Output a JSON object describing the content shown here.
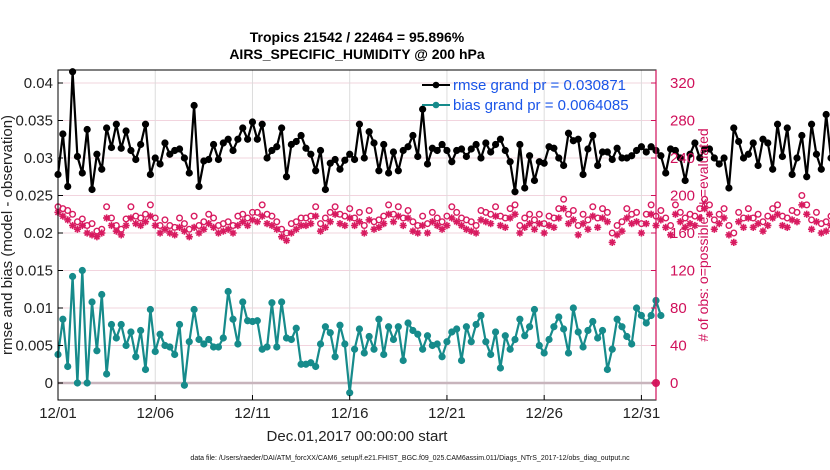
{
  "chart_data": {
    "type": "line",
    "title": "Tropics 21542 / 22464 = 95.896%",
    "subtitle": "AIRS_SPECIFIC_HUMIDITY @ 200 hPa",
    "xlabel": "Dec.01,2017 00:00:00 start",
    "ylabel": "rmse and bias (model - observation)",
    "y2label": "# of obs: o=possible; ∗=evaluated",
    "footnote": "data file: /Users/raeder/DAI/ATM_forcXX/CAM6_setup/f.e21.FHIST_BGC.f09_025.CAM6assim.011/Diags_NTrS_2017-12/obs_diag_output.nc",
    "x_start_day": 1,
    "x_step_days": 0.25,
    "xlim_days": [
      1,
      31.75
    ],
    "x_ticks": [
      {
        "day": 1,
        "label": "12/01"
      },
      {
        "day": 6,
        "label": "12/06"
      },
      {
        "day": 11,
        "label": "12/11"
      },
      {
        "day": 16,
        "label": "12/16"
      },
      {
        "day": 21,
        "label": "12/21"
      },
      {
        "day": 26,
        "label": "12/26"
      },
      {
        "day": 31,
        "label": "12/31"
      }
    ],
    "ylim": [
      -0.0025,
      0.042
    ],
    "y_ticks": [
      0,
      0.005,
      0.01,
      0.015,
      0.02,
      0.025,
      0.03,
      0.035,
      0.04
    ],
    "y_tick_labels": [
      "0",
      "0.005",
      "0.01",
      "0.015",
      "0.02",
      "0.025",
      "0.03",
      "0.035",
      "0.04"
    ],
    "y2lim": [
      -20,
      340
    ],
    "y2_ticks": [
      0,
      40,
      80,
      120,
      160,
      200,
      240,
      280,
      320
    ],
    "y2_tick_labels": [
      "0",
      "40",
      "80",
      "120",
      "160",
      "200",
      "240",
      "280",
      "320"
    ],
    "grid": true,
    "legend_position": "top-right",
    "series": [
      {
        "name": "rmse grand pr = 0.030871",
        "color": "#000000",
        "axis": "left",
        "values": [
          0.0278,
          0.0332,
          0.0262,
          0.0415,
          0.0302,
          0.028,
          0.0338,
          0.0258,
          0.0305,
          0.0285,
          0.034,
          0.0314,
          0.0345,
          0.0313,
          0.0336,
          0.031,
          0.0298,
          0.0318,
          0.0345,
          0.0278,
          0.03,
          0.0292,
          0.032,
          0.0305,
          0.031,
          0.0312,
          0.03,
          0.028,
          0.037,
          0.0262,
          0.0296,
          0.0298,
          0.0318,
          0.0298,
          0.032,
          0.0325,
          0.031,
          0.0325,
          0.034,
          0.0325,
          0.0348,
          0.0325,
          0.0345,
          0.03,
          0.031,
          0.0315,
          0.034,
          0.0275,
          0.0318,
          0.0322,
          0.033,
          0.0313,
          0.0305,
          0.0283,
          0.031,
          0.0258,
          0.0293,
          0.0298,
          0.0285,
          0.0297,
          0.0305,
          0.0298,
          0.0345,
          0.03,
          0.0335,
          0.032,
          0.0283,
          0.0318,
          0.028,
          0.0308,
          0.0283,
          0.031,
          0.0315,
          0.033,
          0.0302,
          0.0365,
          0.0292,
          0.0313,
          0.031,
          0.0318,
          0.031,
          0.0295,
          0.031,
          0.0312,
          0.0302,
          0.0312,
          0.0318,
          0.03,
          0.032,
          0.0308,
          0.0318,
          0.0325,
          0.031,
          0.0295,
          0.0255,
          0.0318,
          0.026,
          0.0303,
          0.027,
          0.0295,
          0.0293,
          0.0315,
          0.0313,
          0.03,
          0.029,
          0.0333,
          0.0323,
          0.0325,
          0.0278,
          0.0312,
          0.033,
          0.029,
          0.0308,
          0.0308,
          0.0298,
          0.0313,
          0.03,
          0.03,
          0.0303,
          0.031,
          0.0315,
          0.0308,
          0.0315,
          0.031,
          0.0303,
          0.028,
          0.0312,
          0.031,
          0.03,
          0.027,
          0.0305,
          0.032,
          0.03,
          0.0312,
          0.0312,
          0.03,
          0.0292,
          0.03,
          0.026,
          0.034,
          0.0322,
          0.03,
          0.0305,
          0.032,
          0.029,
          0.0325,
          0.032,
          0.0285,
          0.0345,
          0.0302,
          0.034,
          0.0278,
          0.03,
          0.033,
          0.0275,
          0.0345,
          0.0305,
          0.0285,
          0.0358,
          0.03,
          0.0348,
          0.0262,
          0.033,
          0.027,
          0.034,
          0.0315,
          0.029,
          0.034,
          0.0315,
          0.03,
          0.0335,
          0.0285,
          0.0345,
          0.025,
          0.034
        ]
      },
      {
        "name": "bias grand pr = 0.0064085",
        "color": "#168b8b",
        "axis": "left",
        "values": [
          0.0038,
          0.0085,
          0.0022,
          0.0142,
          0.0,
          0.015,
          0.0,
          0.0108,
          0.0043,
          0.0118,
          0.0012,
          0.0078,
          0.006,
          0.0078,
          0.005,
          0.0068,
          0.0035,
          0.007,
          0.0018,
          0.0098,
          0.0042,
          0.0065,
          0.005,
          0.0048,
          0.0038,
          0.0078,
          -0.0003,
          0.0055,
          0.0098,
          0.0058,
          0.0052,
          0.0058,
          0.0048,
          0.0048,
          0.006,
          0.0122,
          0.0085,
          0.0052,
          0.0108,
          0.0083,
          0.0082,
          0.0083,
          0.0045,
          0.0048,
          0.0107,
          0.0048,
          0.0108,
          0.006,
          0.0058,
          0.0073,
          0.0025,
          0.0025,
          0.0027,
          0.0022,
          0.0052,
          0.0075,
          0.0067,
          0.0035,
          0.0077,
          0.0052,
          -0.0013,
          0.0045,
          0.0072,
          0.004,
          0.0062,
          0.0045,
          0.0085,
          0.0038,
          0.0075,
          0.0058,
          0.0075,
          0.003,
          0.008,
          0.007,
          0.0065,
          0.0045,
          0.0063,
          0.005,
          0.0052,
          0.0035,
          0.0055,
          0.0068,
          0.0072,
          0.003,
          0.0075,
          0.0055,
          0.0078,
          0.009,
          0.0055,
          0.0038,
          0.0068,
          0.002,
          0.0063,
          0.0045,
          0.0058,
          0.0085,
          0.0063,
          0.0075,
          0.0098,
          0.005,
          0.004,
          0.0058,
          0.0075,
          0.0088,
          0.0072,
          0.004,
          0.01,
          0.0068,
          0.0048,
          0.007,
          0.0082,
          0.006,
          0.007,
          0.0018,
          0.0045,
          0.0085,
          0.0075,
          0.0062,
          0.0052,
          0.01,
          0.009,
          0.008,
          0.009,
          0.011,
          0.009
        ]
      }
    ],
    "obs_counts": {
      "color": "#d81b60",
      "axis": "right",
      "possible": [
        188,
        186,
        184,
        180,
        172,
        175,
        168,
        170,
        162,
        164,
        188,
        176,
        168,
        164,
        175,
        188,
        178,
        176,
        180,
        190,
        176,
        168,
        174,
        168,
        166,
        176,
        170,
        164,
        178,
        168,
        172,
        180,
        176,
        168,
        170,
        172,
        168,
        178,
        180,
        176,
        182,
        182,
        190,
        180,
        178,
        172,
        164,
        160,
        170,
        172,
        176,
        176,
        178,
        188,
        170,
        176,
        182,
        188,
        180,
        178,
        186,
        176,
        182,
        168,
        184,
        172,
        174,
        178,
        190,
        180,
        188,
        176,
        184,
        172,
        168,
        178,
        170,
        182,
        176,
        172,
        178,
        188,
        182,
        176,
        174,
        172,
        168,
        184,
        182,
        180,
        188,
        178,
        176,
        186,
        190,
        168,
        176,
        180,
        174,
        180,
        170,
        178,
        176,
        186,
        196,
        180,
        184,
        168,
        180,
        174,
        188,
        176,
        186,
        182,
        160,
        168,
        172,
        186,
        180,
        182,
        170,
        180,
        190,
        178,
        184,
        176,
        168,
        190,
        182,
        176,
        180,
        178,
        186,
        196,
        190,
        174,
        180,
        186,
        168,
        160,
        182,
        176,
        186,
        176,
        180,
        172,
        178,
        186,
        190,
        178,
        176,
        184,
        182,
        200,
        190,
        174,
        182,
        170,
        172,
        178,
        176,
        186,
        196,
        204,
        188,
        180,
        190,
        176,
        182,
        186,
        168,
        190,
        184,
        178,
        176,
        186,
        190,
        180,
        174
      ],
      "evaluated": [
        182,
        178,
        174,
        168,
        164,
        168,
        160,
        158,
        156,
        160,
        176,
        168,
        162,
        158,
        168,
        176,
        170,
        168,
        172,
        178,
        168,
        160,
        164,
        160,
        158,
        166,
        162,
        156,
        166,
        160,
        164,
        170,
        166,
        160,
        162,
        164,
        160,
        168,
        172,
        168,
        174,
        172,
        178,
        170,
        168,
        164,
        156,
        152,
        160,
        164,
        168,
        168,
        170,
        178,
        162,
        166,
        172,
        180,
        170,
        168,
        176,
        168,
        172,
        160,
        174,
        164,
        166,
        170,
        180,
        172,
        178,
        168,
        176,
        162,
        160,
        168,
        160,
        172,
        168,
        164,
        168,
        176,
        172,
        168,
        164,
        162,
        160,
        174,
        172,
        170,
        178,
        168,
        166,
        176,
        180,
        160,
        166,
        170,
        164,
        170,
        160,
        168,
        166,
        176,
        186,
        170,
        174,
        158,
        170,
        164,
        178,
        166,
        176,
        172,
        150,
        158,
        162,
        176,
        170,
        172,
        160,
        170,
        180,
        168,
        174,
        166,
        158,
        180,
        172,
        166,
        170,
        168,
        176,
        186,
        180,
        164,
        170,
        176,
        158,
        150,
        172,
        166,
        176,
        166,
        170,
        162,
        168,
        176,
        180,
        168,
        166,
        174,
        172,
        190,
        180,
        164,
        172,
        160,
        162,
        168,
        166,
        176,
        186,
        194,
        178,
        170,
        180,
        166,
        172,
        176,
        158,
        180,
        174,
        168,
        166,
        176,
        180,
        170,
        0
      ]
    }
  },
  "legend": {
    "rmse_label": "rmse grand pr = 0.030871",
    "bias_label": "bias grand pr = 0.0064085"
  }
}
